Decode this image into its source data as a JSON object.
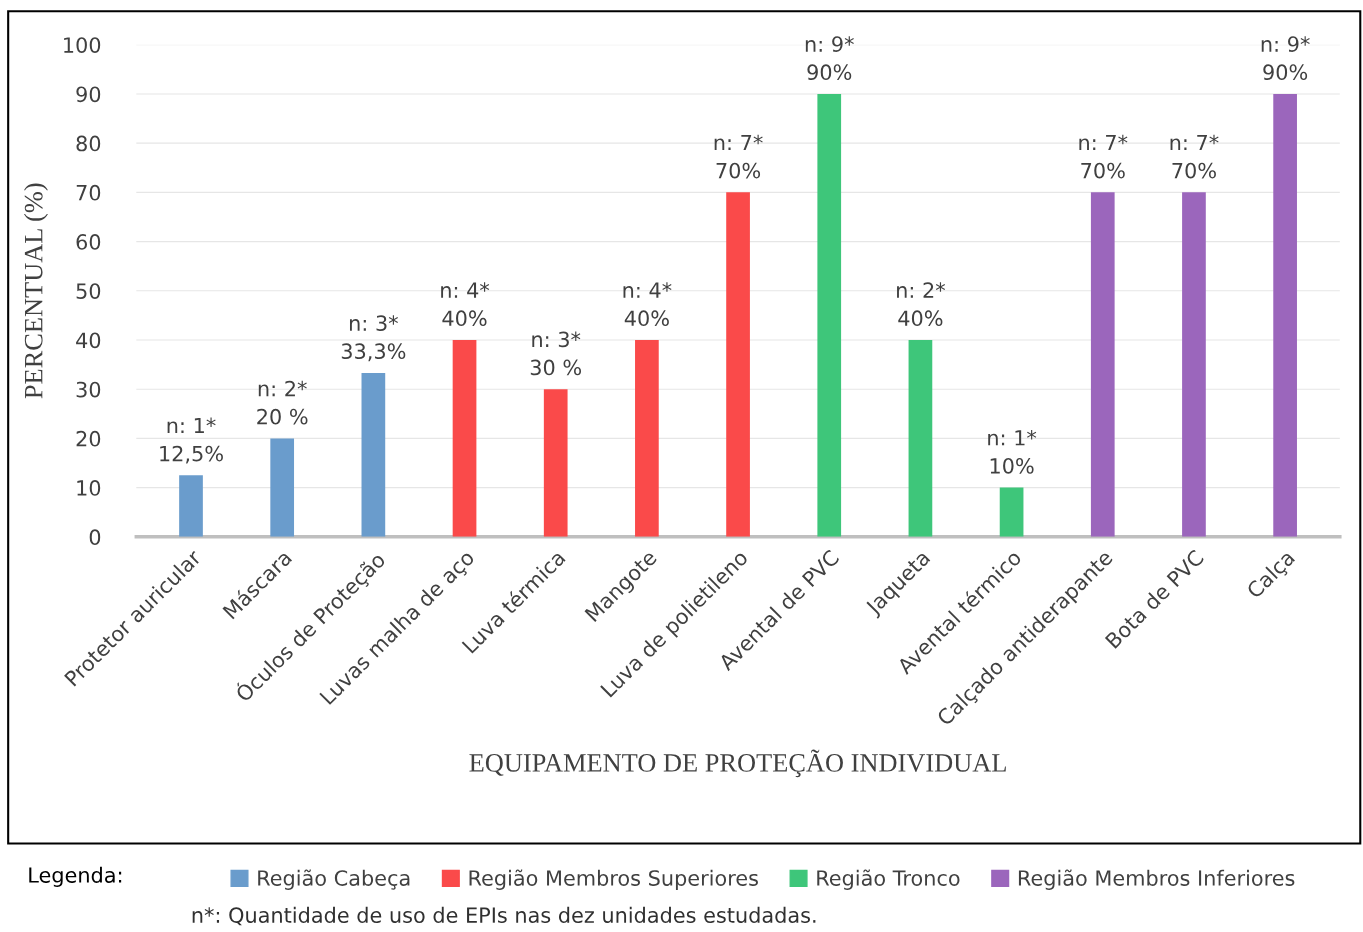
{
  "chart_data": {
    "type": "bar",
    "xlabel": "EQUIPAMENTO DE PROTEÇÃO INDIVIDUAL",
    "ylabel": "PERCENTUAL (%)",
    "categories": [
      "Protetor auricular",
      "Máscara",
      "Óculos de Proteção",
      "Luvas malha de aço",
      "Luva térmica",
      "Mangote",
      "Luva de polietileno",
      "Avental de PVC",
      "Jaqueta",
      "Avental térmico",
      "Calçado antiderapante",
      "Bota de PVC",
      "Calça"
    ],
    "series": [
      {
        "name": "Região Cabeça",
        "color": "#6a9ccc",
        "values": [
          12.5,
          20,
          33.3,
          null,
          null,
          null,
          null,
          null,
          null,
          null,
          null,
          null,
          null
        ],
        "value_labels": [
          "n: 1*\n12,5%",
          "n: 2*\n20 %",
          "n: 3*\n33,3%",
          null,
          null,
          null,
          null,
          null,
          null,
          null,
          null,
          null,
          null
        ]
      },
      {
        "name": "Região Membros Superiores",
        "color": "#fa4a4a",
        "values": [
          null,
          null,
          null,
          40,
          30,
          40,
          70,
          null,
          null,
          null,
          null,
          null,
          null
        ],
        "value_labels": [
          null,
          null,
          null,
          "n: 4*\n40%",
          "n: 3*\n30 %",
          "n: 4*\n40%",
          "n: 7*\n70%",
          null,
          null,
          null,
          null,
          null,
          null
        ]
      },
      {
        "name": "Região Tronco",
        "color": "#3ec67a",
        "values": [
          null,
          null,
          null,
          null,
          null,
          null,
          null,
          90,
          40,
          10,
          null,
          null,
          null
        ],
        "value_labels": [
          null,
          null,
          null,
          null,
          null,
          null,
          null,
          "n: 9*\n90%",
          "n: 2*\n40%",
          "n: 1*\n10%",
          null,
          null,
          null
        ]
      },
      {
        "name": "Região Membros Inferiores",
        "color": "#9b66bc",
        "values": [
          null,
          null,
          null,
          null,
          null,
          null,
          null,
          null,
          null,
          null,
          70,
          70,
          90
        ],
        "value_labels": [
          null,
          null,
          null,
          null,
          null,
          null,
          null,
          null,
          null,
          null,
          "n: 7*\n70%",
          "n: 7*\n70%",
          "n: 9*\n90%"
        ]
      }
    ],
    "ylim": [
      0,
      100
    ],
    "yticks": [
      0,
      10,
      20,
      30,
      40,
      50,
      60,
      70,
      80,
      90,
      100
    ],
    "grid": "y",
    "legend": "bottom",
    "legend_title": "Legenda:",
    "annotations": [
      "n*: Quantidade de uso de EPIs nas dez unidades estudadas."
    ]
  }
}
